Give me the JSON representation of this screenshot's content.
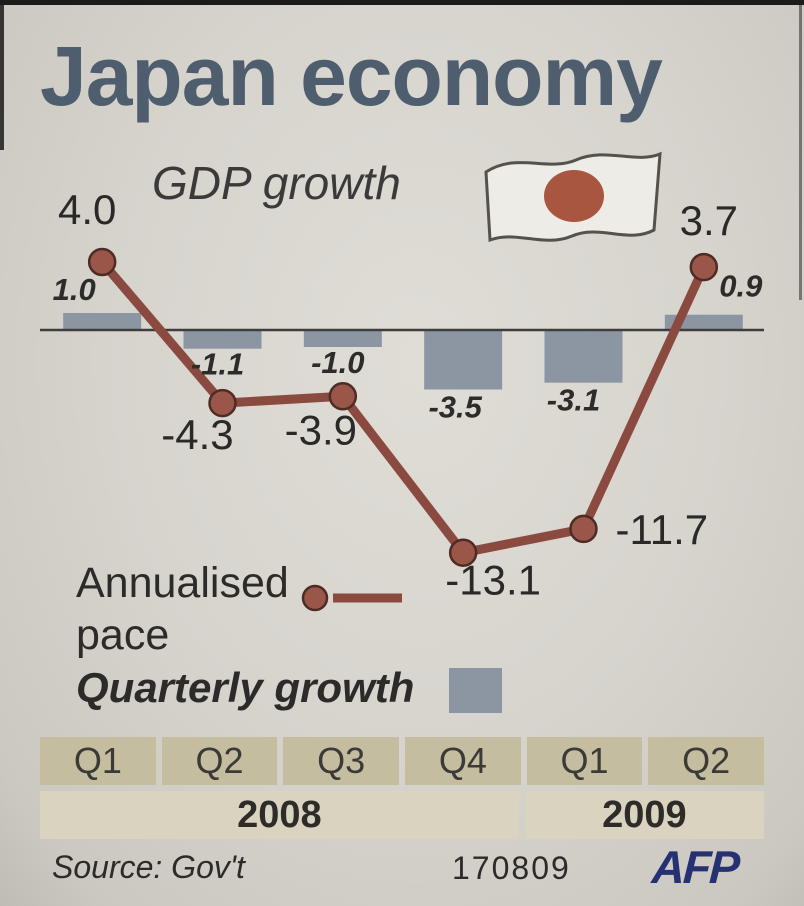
{
  "header": {
    "title": "Japan economy"
  },
  "legend": {
    "annualised_line1": "Annualised",
    "annualised_line2": "pace",
    "quarterly": "Quarterly growth"
  },
  "axis": {
    "quarters": [
      "Q1",
      "Q2",
      "Q3",
      "Q4",
      "Q1",
      "Q2"
    ],
    "year_groups": [
      {
        "label": "2008",
        "cols": 4
      },
      {
        "label": "2009",
        "cols": 2
      }
    ]
  },
  "footer": {
    "source": "Source: Gov't",
    "code": "170809",
    "brand": "AFP"
  },
  "colors": {
    "title": "#4e5e6f",
    "line": "#8a4a3f",
    "dot": "#9a5648",
    "dot_edge": "#4e2c26",
    "bar": "#8c96a3",
    "quarter_box": "#c4bda0",
    "year_band": "#d9d3c0",
    "flag_circle": "#a8563f",
    "brand": "#253172"
  },
  "chart_data": {
    "type": "line+bar",
    "title": "GDP growth",
    "categories": [
      "Q1 2008",
      "Q2 2008",
      "Q3 2008",
      "Q4 2008",
      "Q1 2009",
      "Q2 2009"
    ],
    "series": [
      {
        "name": "Annualised pace",
        "type": "line",
        "values": [
          4.0,
          -4.3,
          -3.9,
          -13.1,
          -11.7,
          3.7
        ]
      },
      {
        "name": "Quarterly growth",
        "type": "bar",
        "values": [
          1.0,
          -1.1,
          -1.0,
          -3.5,
          -3.1,
          0.9
        ]
      }
    ],
    "baseline": 0,
    "ylim": [
      -14,
      5
    ],
    "grid": false,
    "legend_position": "bottom-left"
  }
}
